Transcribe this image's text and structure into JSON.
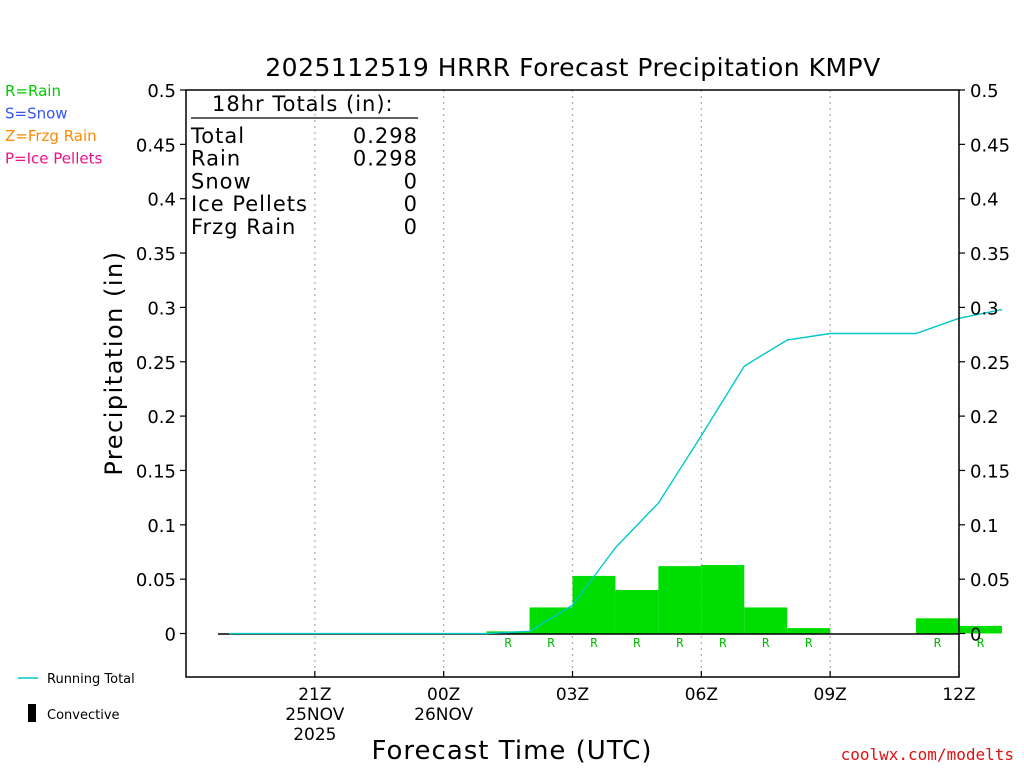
{
  "title": "2025112519 HRRR Forecast Precipitation KMPV",
  "chart_data": {
    "type": "bar",
    "title": "2025112519 HRRR Forecast Precipitation KMPV",
    "xlabel": "Forecast Time (UTC)",
    "ylabel": "Precipitation (in)",
    "ylim": [
      -0.04,
      0.5
    ],
    "y_ticks": [
      0,
      0.05,
      0.1,
      0.15,
      0.2,
      0.25,
      0.3,
      0.35,
      0.4,
      0.45,
      0.5
    ],
    "y_tick_labels": [
      "0",
      "0.05",
      "0.1",
      "0.15",
      "0.2",
      "0.25",
      "0.3",
      "0.35",
      "0.4",
      "0.45",
      "0.5"
    ],
    "x_range_hours": [
      -1,
      17
    ],
    "x_ticks": [
      {
        "hour": 2,
        "label": "21Z",
        "date": "25NOV",
        "year": "2025"
      },
      {
        "hour": 5,
        "label": "00Z",
        "date": "26NOV",
        "year": ""
      },
      {
        "hour": 8,
        "label": "03Z",
        "date": "",
        "year": ""
      },
      {
        "hour": 11,
        "label": "06Z",
        "date": "",
        "year": ""
      },
      {
        "hour": 14,
        "label": "09Z",
        "date": "",
        "year": ""
      },
      {
        "hour": 17,
        "label": "12Z",
        "date": "",
        "year": ""
      }
    ],
    "hourly_precip": [
      {
        "hour": 1,
        "value": 0,
        "type": ""
      },
      {
        "hour": 2,
        "value": 0,
        "type": ""
      },
      {
        "hour": 3,
        "value": 0,
        "type": ""
      },
      {
        "hour": 4,
        "value": 0,
        "type": ""
      },
      {
        "hour": 5,
        "value": 0,
        "type": ""
      },
      {
        "hour": 6,
        "value": 0,
        "type": ""
      },
      {
        "hour": 7,
        "value": 0.002,
        "type": "R"
      },
      {
        "hour": 8,
        "value": 0.024,
        "type": "R"
      },
      {
        "hour": 9,
        "value": 0.053,
        "type": "R"
      },
      {
        "hour": 10,
        "value": 0.04,
        "type": "R"
      },
      {
        "hour": 11,
        "value": 0.062,
        "type": "R"
      },
      {
        "hour": 12,
        "value": 0.063,
        "type": "R"
      },
      {
        "hour": 13,
        "value": 0.024,
        "type": "R"
      },
      {
        "hour": 14,
        "value": 0.005,
        "type": "R"
      },
      {
        "hour": 15,
        "value": 0,
        "type": ""
      },
      {
        "hour": 16,
        "value": 0,
        "type": ""
      },
      {
        "hour": 17,
        "value": 0.014,
        "type": "R"
      },
      {
        "hour": 18,
        "value": 0.007,
        "type": "R"
      }
    ],
    "running_total": [
      {
        "hour": 0,
        "value": 0
      },
      {
        "hour": 1,
        "value": 0
      },
      {
        "hour": 2,
        "value": 0
      },
      {
        "hour": 3,
        "value": 0
      },
      {
        "hour": 4,
        "value": 0
      },
      {
        "hour": 5,
        "value": 0
      },
      {
        "hour": 6,
        "value": 0
      },
      {
        "hour": 7,
        "value": 0.002
      },
      {
        "hour": 8,
        "value": 0.026
      },
      {
        "hour": 9,
        "value": 0.079
      },
      {
        "hour": 10,
        "value": 0.12
      },
      {
        "hour": 11,
        "value": 0.182
      },
      {
        "hour": 12,
        "value": 0.246
      },
      {
        "hour": 13,
        "value": 0.27
      },
      {
        "hour": 14,
        "value": 0.276
      },
      {
        "hour": 15,
        "value": 0.276
      },
      {
        "hour": 16,
        "value": 0.276
      },
      {
        "hour": 17,
        "value": 0.29
      },
      {
        "hour": 18,
        "value": 0.298
      }
    ],
    "totals_box": {
      "heading": "18hr Totals (in):",
      "rows": [
        {
          "label": "Total",
          "value": "0.298"
        },
        {
          "label": "Rain",
          "value": "0.298"
        },
        {
          "label": "Snow",
          "value": "0"
        },
        {
          "label": "Ice Pellets",
          "value": "0"
        },
        {
          "label": "Frzg Rain",
          "value": "0"
        }
      ]
    },
    "type_legend": [
      {
        "text": "R=Rain",
        "color": "#00cc00"
      },
      {
        "text": "S=Snow",
        "color": "#3355ff"
      },
      {
        "text": "Z=Frzg Rain",
        "color": "#ff8800"
      },
      {
        "text": "P=Ice Pellets",
        "color": "#ee1188"
      }
    ],
    "series_legend": [
      {
        "text": "Running Total",
        "color": "#00c8c8"
      },
      {
        "text": "Convective",
        "color": "#000000"
      }
    ]
  },
  "colors": {
    "rain_bar": "#00dd00",
    "running_total": "#00c8c8",
    "rain_letter": "#00bb00",
    "gridline": "#aaaaaa",
    "credit": "#dd1111"
  },
  "credit": "coolwx.com/modelts"
}
